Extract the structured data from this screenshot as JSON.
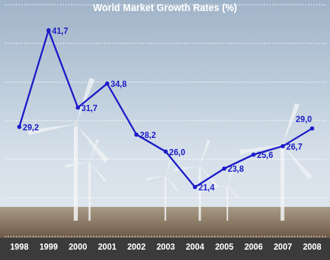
{
  "chart_data": {
    "type": "line",
    "title": "World Market Growth Rates (%)",
    "categories": [
      "1998",
      "1999",
      "2000",
      "2001",
      "2002",
      "2003",
      "2004",
      "2005",
      "2006",
      "2007",
      "2008"
    ],
    "values": [
      29.2,
      41.7,
      31.7,
      34.8,
      28.2,
      26.0,
      21.4,
      23.8,
      25.6,
      26.7,
      29.0
    ],
    "value_labels": [
      "29,2",
      "41,7",
      "31,7",
      "34,8",
      "28,2",
      "26,0",
      "21,4",
      "23,8",
      "25,6",
      "26,7",
      "29,0"
    ],
    "color": "#1c1cc8",
    "marker": "circle",
    "line_style": "solid",
    "ylim": [
      15,
      45
    ],
    "yticks": [
      15,
      20,
      25,
      30,
      35,
      40,
      45
    ],
    "grid": true,
    "data_labels": true,
    "tick_labels": "x"
  }
}
